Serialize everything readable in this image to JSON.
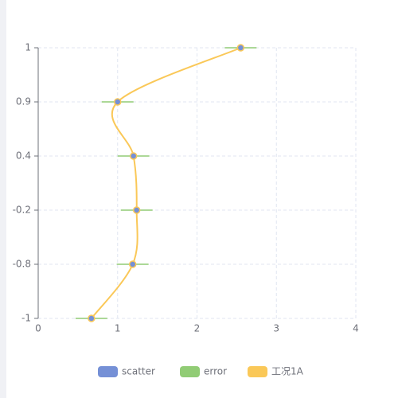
{
  "chart_data": {
    "type": "scatter-error-line",
    "categories": [
      "-1",
      "-0.8",
      "-0.2",
      "0.4",
      "0.9",
      "1"
    ],
    "xlim": [
      0,
      4
    ],
    "xticks": [
      0,
      1,
      2,
      3,
      4
    ],
    "grid": true,
    "legend": "bottom",
    "series": [
      {
        "name": "scatter",
        "color": "#7590d6",
        "values": [
          0.67,
          1.19,
          1.24,
          1.2,
          1.0,
          2.55
        ]
      },
      {
        "name": "error",
        "color": "#91cc75",
        "values": [
          0.2,
          0.2,
          0.2,
          0.2,
          0.2,
          0.2
        ]
      },
      {
        "name": "工况1A",
        "color": "#fac858",
        "values": [
          0.67,
          1.19,
          1.24,
          1.2,
          1.0,
          2.55
        ]
      }
    ]
  }
}
